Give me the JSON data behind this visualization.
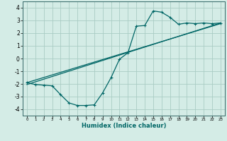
{
  "xlabel": "Humidex (Indice chaleur)",
  "bg_color": "#d4ece6",
  "grid_color": "#aaccc4",
  "line_color": "#006666",
  "xlim": [
    -0.5,
    23.5
  ],
  "ylim": [
    -4.5,
    4.5
  ],
  "xticks": [
    0,
    1,
    2,
    3,
    4,
    5,
    6,
    7,
    8,
    9,
    10,
    11,
    12,
    13,
    14,
    15,
    16,
    17,
    18,
    19,
    20,
    21,
    22,
    23
  ],
  "yticks": [
    -4,
    -3,
    -2,
    -1,
    0,
    1,
    2,
    3,
    4
  ],
  "line1_x": [
    0,
    1,
    2,
    3,
    4,
    5,
    6,
    7,
    8,
    9,
    10,
    11,
    12,
    13,
    14,
    15,
    16,
    17,
    18,
    19,
    20,
    21,
    22,
    23
  ],
  "line1_y": [
    -1.9,
    -2.05,
    -2.1,
    -2.15,
    -2.85,
    -3.5,
    -3.7,
    -3.7,
    -3.65,
    -2.7,
    -1.5,
    -0.05,
    0.45,
    2.55,
    2.6,
    3.75,
    3.65,
    3.25,
    2.7,
    2.8,
    2.75,
    2.8,
    2.75,
    2.8
  ],
  "line2_x": [
    0,
    23
  ],
  "line2_y": [
    -2.05,
    2.8
  ],
  "line3_x": [
    0,
    23
  ],
  "line3_y": [
    -1.9,
    2.75
  ]
}
